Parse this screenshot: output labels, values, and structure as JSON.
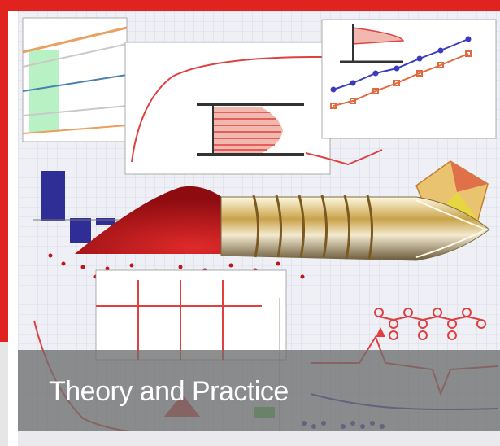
{
  "cover": {
    "title": "Theory and Practice",
    "icons": [
      "screw-icon",
      "granules-icon",
      "polymer-chain-icon",
      "flow-profile-icon"
    ],
    "colors": {
      "frame_red": "#e0231f",
      "banner_gray": "#6e6e6e",
      "title_white": "#ffffff",
      "grid_bg": "#e9e9f2",
      "granule_red": "#c0141a",
      "chart_blue": "#3b3bbf"
    }
  }
}
